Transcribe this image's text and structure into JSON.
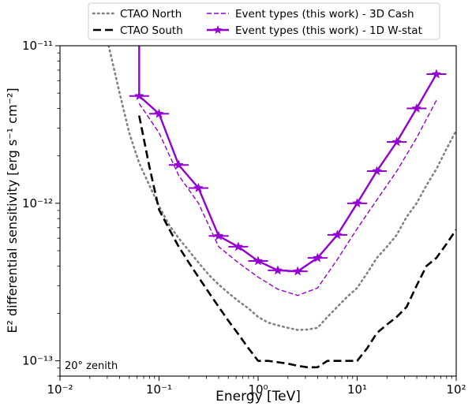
{
  "chart_data": {
    "type": "line",
    "title": "",
    "xlabel": "Energy [TeV]",
    "ylabel": "E² differential sensitivity [erg s⁻¹ cm⁻²]",
    "xscale": "log",
    "yscale": "log",
    "xlim": [
      0.01,
      100
    ],
    "ylim": [
      8e-14,
      1e-11
    ],
    "x_ticks": [
      {
        "value": 0.01,
        "label": "10⁻²"
      },
      {
        "value": 0.1,
        "label": "10⁻¹"
      },
      {
        "value": 1,
        "label": "10⁰"
      },
      {
        "value": 10,
        "label": "10¹"
      },
      {
        "value": 100,
        "label": "10²"
      }
    ],
    "y_ticks": [
      {
        "value": 1e-13,
        "label": "10⁻¹³"
      },
      {
        "value": 1e-12,
        "label": "10⁻¹²"
      },
      {
        "value": 1e-11,
        "label": "10⁻¹¹"
      }
    ],
    "grid": false,
    "legend_position": "top-center",
    "annotation": "20° zenith",
    "series": [
      {
        "name": "CTAO North",
        "style": "dotted",
        "color": "#808080",
        "x": [
          0.031,
          0.04,
          0.05,
          0.063,
          0.08,
          0.1,
          0.126,
          0.158,
          0.2,
          0.25,
          0.32,
          0.4,
          0.5,
          0.63,
          0.8,
          1.0,
          1.26,
          1.58,
          2.0,
          2.51,
          3.16,
          3.98,
          5.01,
          6.31,
          7.94,
          10.0,
          12.6,
          15.8,
          20.0,
          25.1,
          31.6,
          39.8,
          50.1,
          63.1,
          79.4,
          100
        ],
        "y": [
          1e-11,
          5e-12,
          2.8e-12,
          1.8e-12,
          1.3e-12,
          9.6e-13,
          7.3e-13,
          6e-13,
          5e-13,
          4.2e-13,
          3.5e-13,
          3.05e-13,
          2.7e-13,
          2.4e-13,
          2.15e-13,
          1.9e-13,
          1.75e-13,
          1.68e-13,
          1.62e-13,
          1.57e-13,
          1.58e-13,
          1.62e-13,
          1.9e-13,
          2.2e-13,
          2.55e-13,
          2.9e-13,
          3.6e-13,
          4.5e-13,
          5.3e-13,
          6.3e-13,
          8.2e-13,
          1e-12,
          1.3e-12,
          1.65e-12,
          2.2e-12,
          2.9e-12
        ]
      },
      {
        "name": "CTAO South",
        "style": "dashed",
        "color": "#000000",
        "x": [
          0.063,
          0.08,
          0.1,
          0.126,
          0.158,
          0.2,
          0.25,
          0.32,
          0.4,
          0.5,
          0.63,
          0.8,
          1.0,
          1.26,
          1.58,
          2.0,
          2.51,
          3.16,
          3.98,
          5.01,
          6.31,
          7.94,
          10.0,
          12.6,
          15.8,
          20.0,
          25.1,
          31.6,
          39.8,
          50.1,
          63.1,
          79.4,
          100
        ],
        "y": [
          3.6e-12,
          1.7e-12,
          9.1e-13,
          6.9e-13,
          5.3e-13,
          4.2e-13,
          3.4e-13,
          2.7e-13,
          2.2e-13,
          1.8e-13,
          1.48e-13,
          1.2e-13,
          1e-13,
          1e-13,
          9.8e-14,
          9.6e-14,
          9.3e-14,
          9.1e-14,
          9.1e-14,
          1e-13,
          1e-13,
          1e-13,
          1e-13,
          1.2e-13,
          1.5e-13,
          1.7e-13,
          1.9e-13,
          2.2e-13,
          3e-13,
          4e-13,
          4.5e-13,
          5.5e-13,
          6.8e-13
        ]
      },
      {
        "name": "Event types (this work) - 3D Cash",
        "style": "dashed-thin",
        "color": "#9400d3",
        "x": [
          0.063,
          0.1,
          0.158,
          0.25,
          0.4,
          0.63,
          1.0,
          1.58,
          2.51,
          3.98,
          6.31,
          10.0,
          15.8,
          25.1,
          39.8,
          63.1
        ],
        "y": [
          4.3e-12,
          2.8e-12,
          1.5e-12,
          1e-12,
          5.3e-13,
          4.2e-13,
          3.4e-13,
          2.85e-13,
          2.6e-13,
          2.9e-13,
          4.4e-13,
          6.9e-13,
          1.05e-12,
          1.6e-12,
          2.6e-12,
          4.5e-12
        ]
      },
      {
        "name": "Event types (this work) - 1D W-stat",
        "style": "solid-star",
        "color": "#9400d3",
        "x": [
          0.063,
          0.1,
          0.158,
          0.25,
          0.4,
          0.63,
          1.0,
          1.58,
          2.51,
          3.98,
          6.31,
          10.0,
          15.8,
          25.1,
          39.8,
          63.1
        ],
        "y": [
          4.8e-12,
          3.7e-12,
          1.75e-12,
          1.25e-12,
          6.2e-13,
          5.3e-13,
          4.3e-13,
          3.75e-13,
          3.7e-13,
          4.5e-13,
          6.3e-13,
          1e-12,
          1.6e-12,
          2.45e-12,
          4e-12,
          6.6e-12
        ],
        "x_lead_in": [
          0.063,
          0.063
        ],
        "y_lead_in": [
          1e-11,
          4.8e-12
        ]
      }
    ]
  }
}
